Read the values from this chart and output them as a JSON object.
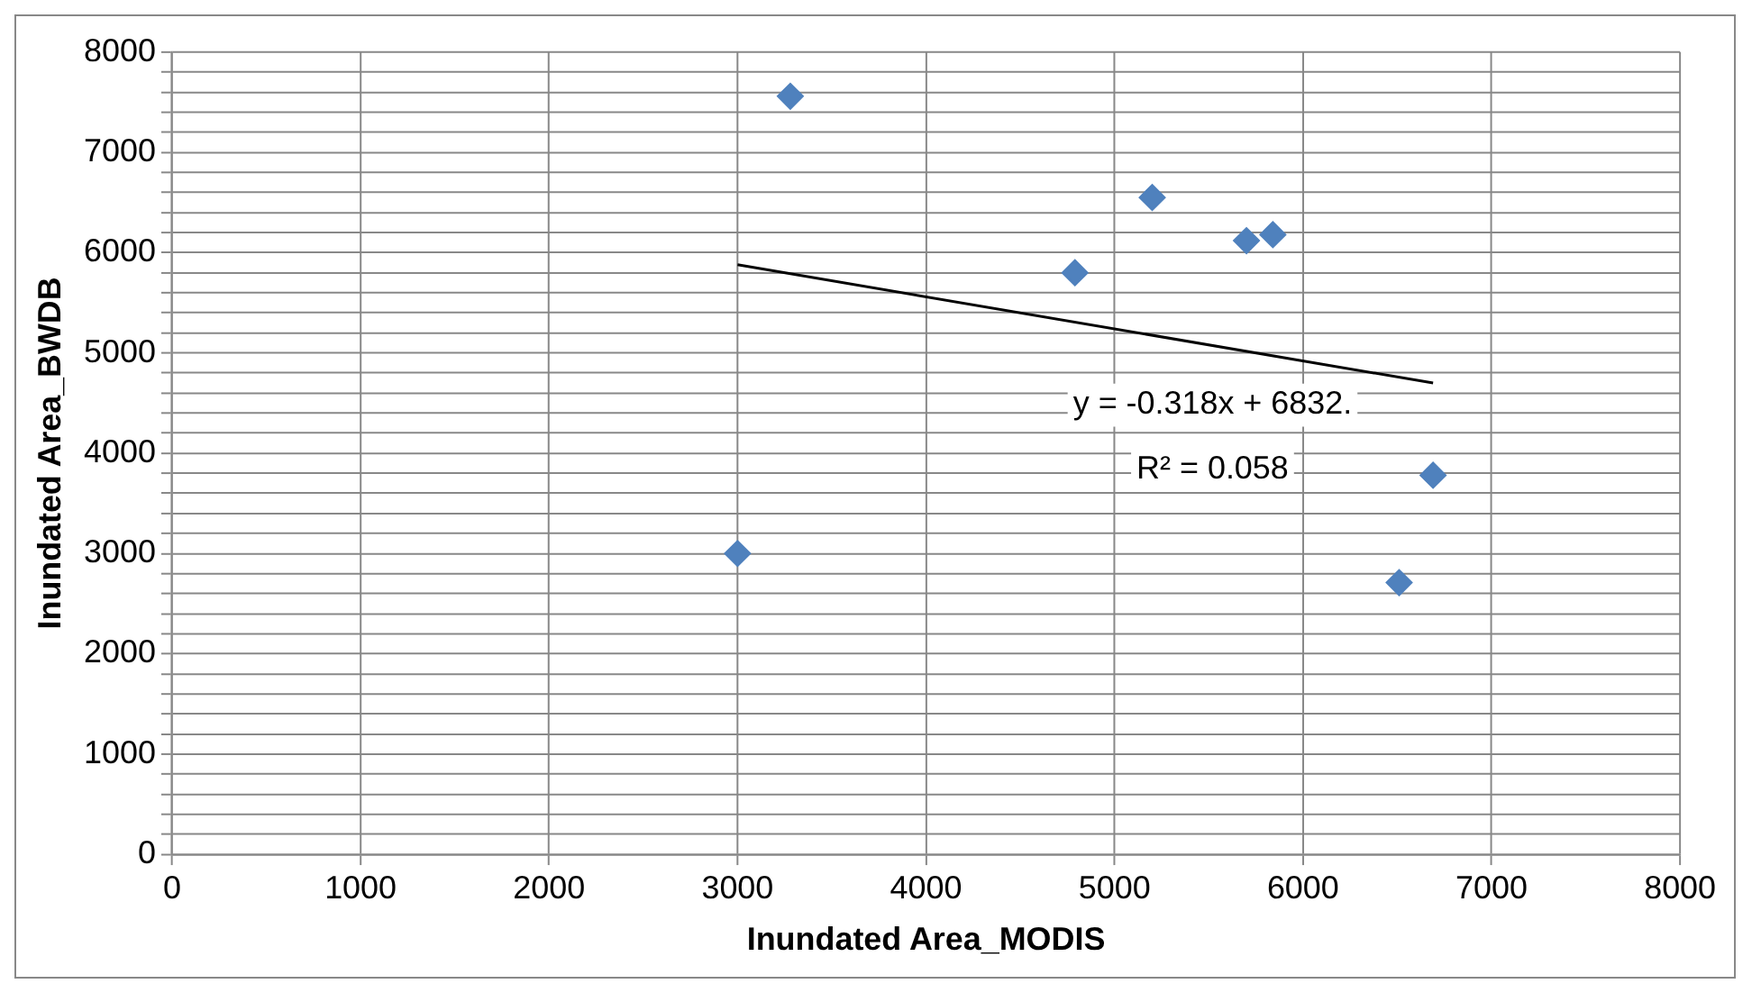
{
  "chart_data": {
    "type": "scatter",
    "xlabel": "Inundated Area_MODIS",
    "ylabel": "Inundated Area_BWDB",
    "xlim": [
      0,
      8000
    ],
    "xticks": [
      0,
      1000,
      2000,
      3000,
      4000,
      5000,
      6000,
      7000,
      8000
    ],
    "ylim": [
      0,
      8000
    ],
    "yticks": [
      0,
      {
        "value": 200,
        "label": null
      },
      {
        "value": 400,
        "label": null
      },
      {
        "value": 600,
        "label": null
      },
      {
        "value": 800,
        "label": null
      },
      1000,
      {
        "value": 1200,
        "label": null
      },
      {
        "value": 1400,
        "label": null
      },
      {
        "value": 1600,
        "label": null
      },
      {
        "value": 1800,
        "label": null
      },
      2000,
      {
        "value": 2200,
        "label": null
      },
      {
        "value": 2400,
        "label": null
      },
      {
        "value": 2600,
        "label": null
      },
      {
        "value": 2800,
        "label": null
      },
      3000,
      {
        "value": 3200,
        "label": null
      },
      {
        "value": 3400,
        "label": null
      },
      {
        "value": 3600,
        "label": null
      },
      {
        "value": 3800,
        "label": null
      },
      4000,
      {
        "value": 4200,
        "label": null
      },
      {
        "value": 4400,
        "label": null
      },
      {
        "value": 4600,
        "label": null
      },
      {
        "value": 4800,
        "label": null
      },
      5000,
      {
        "value": 5200,
        "label": null
      },
      {
        "value": 5400,
        "label": null
      },
      {
        "value": 5600,
        "label": null
      },
      {
        "value": 5800,
        "label": null
      },
      6000,
      {
        "value": 6200,
        "label": null
      },
      {
        "value": 6400,
        "label": null
      },
      {
        "value": 6600,
        "label": null
      },
      {
        "value": 6800,
        "label": null
      },
      7000,
      {
        "value": 7200,
        "label": null
      },
      {
        "value": 7400,
        "label": null
      },
      {
        "value": 7600,
        "label": null
      },
      {
        "value": 7800,
        "label": null
      },
      8000
    ],
    "grid": true,
    "legend": false,
    "series": [
      {
        "color": "#4f81bd",
        "marker": "diamond",
        "x": [
          3000,
          3280,
          4790,
          5200,
          5700,
          5840,
          6510,
          6690
        ],
        "values": [
          3000,
          7560,
          5800,
          6550,
          6120,
          6180,
          2710,
          3780
        ]
      },
      {
        "type": "line",
        "color": "#000000",
        "marker": "none",
        "line_style": "solid",
        "x": [
          3000,
          6690
        ],
        "values": [
          5880,
          4700
        ]
      }
    ],
    "annotations": [
      "y = -0.318x + 6832.",
      "R² = 0.058"
    ]
  }
}
